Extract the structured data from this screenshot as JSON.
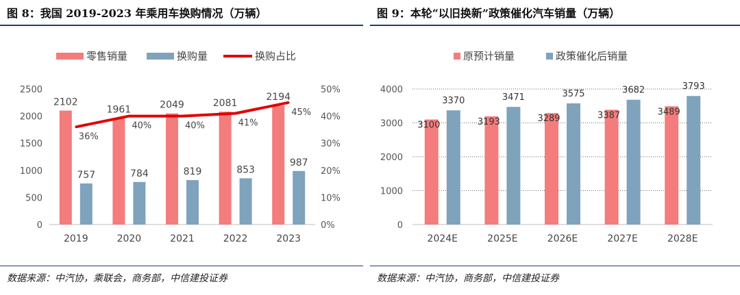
{
  "left": {
    "title": "图 8：我国 2019-2023 年乘用车换购情况（万辆）",
    "source": "数据来源：中汽协，乘联会，商务部，中信建投证券"
  },
  "right": {
    "title": "图 9：本轮“以旧换新”政策催化汽车销量（万辆）",
    "source": "数据来源：中汽协，商务部，中信建投证券"
  },
  "chart_data": [
    {
      "type": "bar",
      "title": "",
      "categories": [
        "2019",
        "2020",
        "2021",
        "2022",
        "2023"
      ],
      "series": [
        {
          "name": "零售销量",
          "kind": "bar",
          "axis": "left",
          "color": "#f47c7c",
          "values": [
            2102,
            1961,
            2049,
            2081,
            2194
          ]
        },
        {
          "name": "换购量",
          "kind": "bar",
          "axis": "left",
          "color": "#7fa2bd",
          "values": [
            757,
            784,
            819,
            853,
            987
          ]
        },
        {
          "name": "换购占比",
          "kind": "line",
          "axis": "right",
          "color": "#e00000",
          "values": [
            36,
            40,
            40,
            41,
            45
          ],
          "labels": [
            "36%",
            "40%",
            "40%",
            "41%",
            "45%"
          ]
        }
      ],
      "ylim": [
        0,
        2500
      ],
      "yticks": [
        "0",
        "500",
        "1000",
        "1500",
        "2000",
        "2500"
      ],
      "y2lim": [
        0,
        50
      ],
      "y2ticks": [
        "0%",
        "10%",
        "20%",
        "30%",
        "40%",
        "50%"
      ],
      "grid": false,
      "legend": "top"
    },
    {
      "type": "bar",
      "title": "",
      "categories": [
        "2024E",
        "2025E",
        "2026E",
        "2027E",
        "2028E"
      ],
      "series": [
        {
          "name": "原预计销量",
          "color": "#f47c7c",
          "values": [
            3100,
            3193,
            3289,
            3387,
            3489
          ]
        },
        {
          "name": "政策催化后销量",
          "color": "#7fa2bd",
          "values": [
            3370,
            3471,
            3575,
            3682,
            3793
          ]
        }
      ],
      "ylim": [
        0,
        4000
      ],
      "yticks": [
        "0",
        "1000",
        "2000",
        "3000",
        "4000"
      ],
      "grid": true,
      "legend": "top"
    }
  ]
}
